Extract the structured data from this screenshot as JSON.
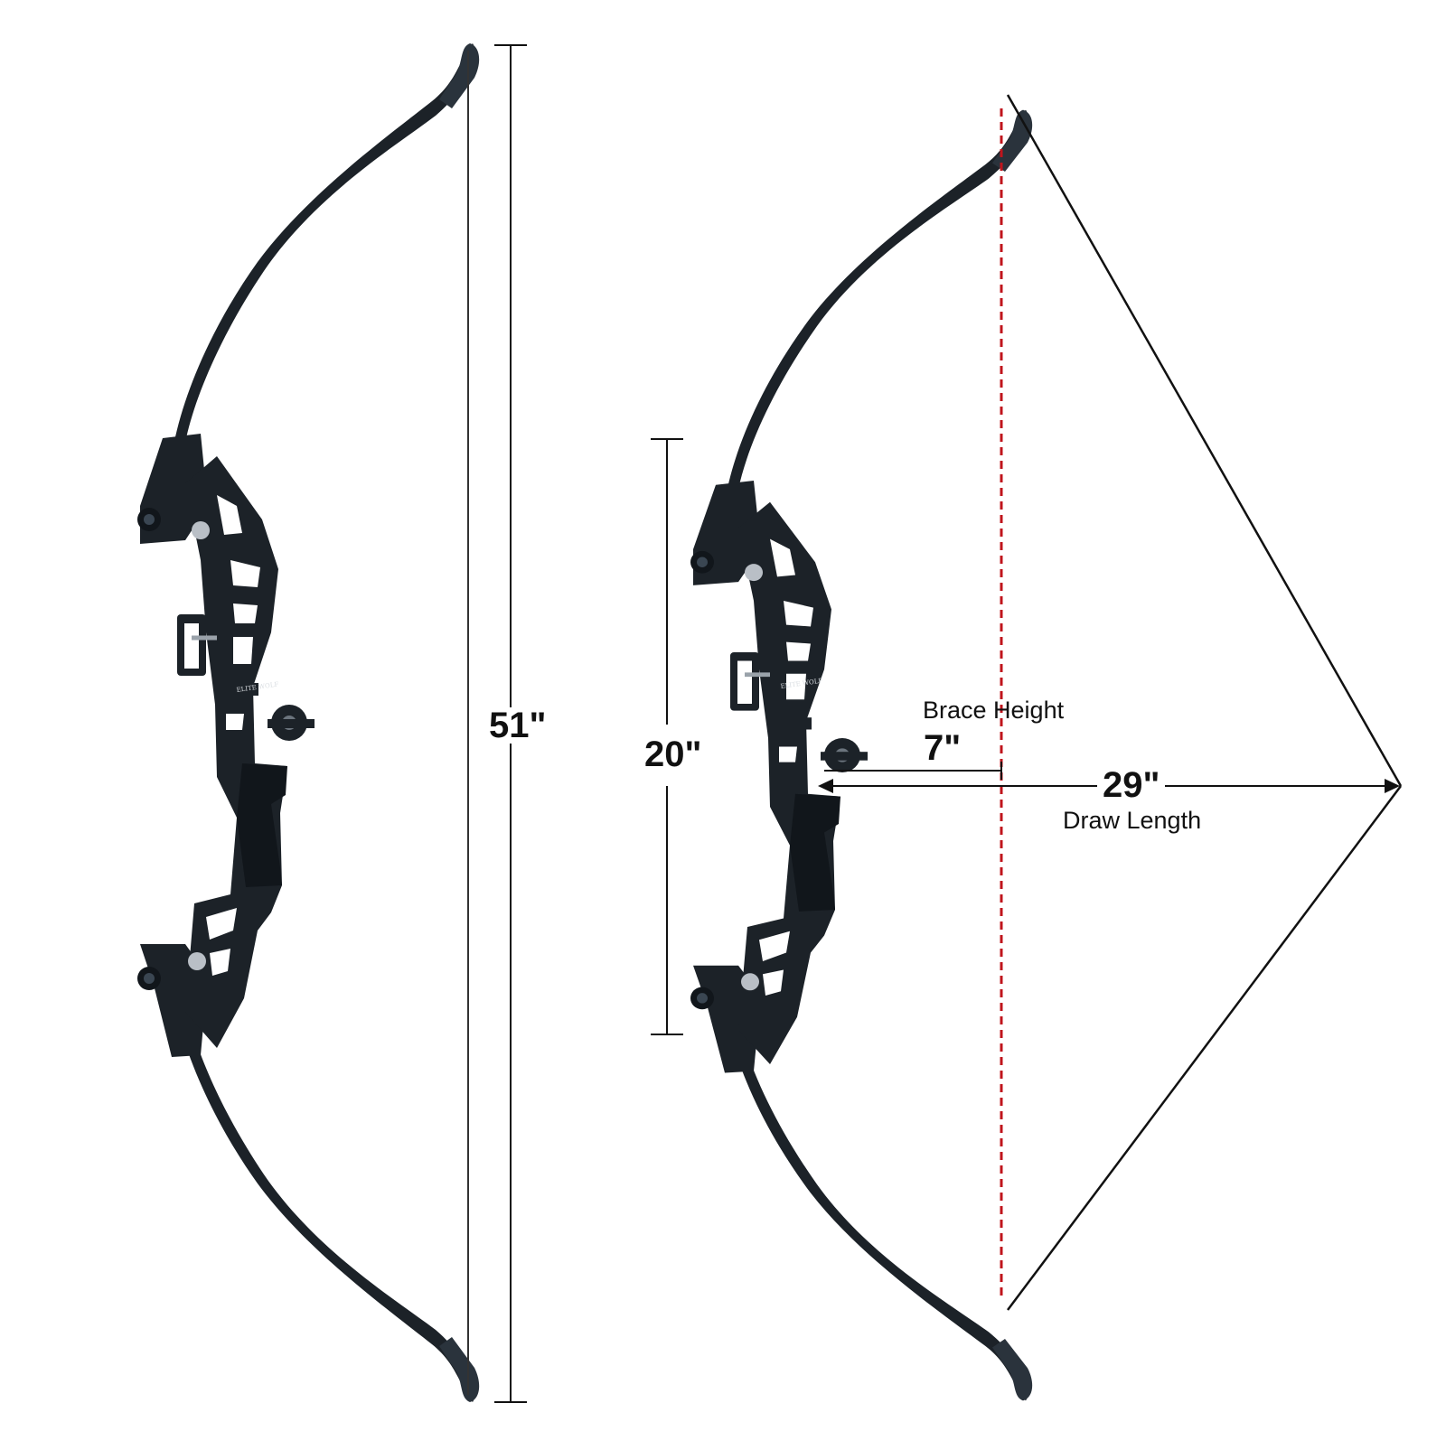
{
  "measurements": {
    "bow_length": "51\"",
    "riser_length": "20\"",
    "brace_height_label": "Brace Height",
    "brace_height_value": "7\"",
    "draw_length_value": "29\"",
    "draw_length_label": "Draw Length"
  },
  "riser_brand": "ELITE WOLF",
  "colors": {
    "bow": "#1c2228",
    "bow_highlight": "#3a4652",
    "dimension_line": "#111111",
    "brace_line": "#c0141c",
    "string": "#333333"
  }
}
